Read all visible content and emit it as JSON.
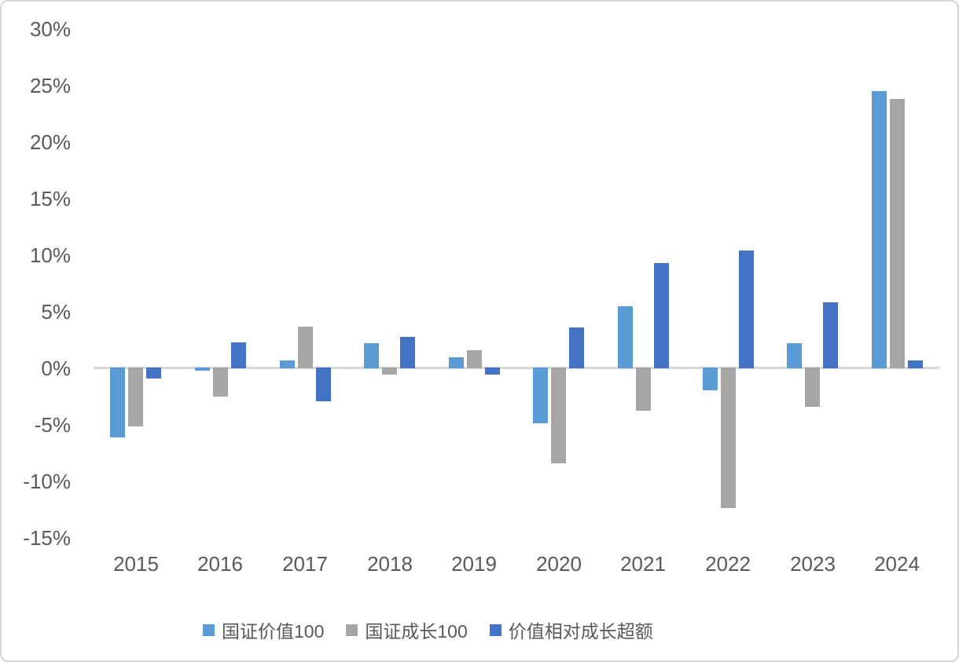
{
  "chart_data": {
    "type": "bar",
    "categories": [
      "2015",
      "2016",
      "2017",
      "2018",
      "2019",
      "2020",
      "2021",
      "2022",
      "2023",
      "2024"
    ],
    "series": [
      {
        "key": "value100",
        "name": "国证价值100",
        "color": "#5B9BD5",
        "values": [
          -6.2,
          -0.3,
          0.7,
          2.2,
          1.0,
          -4.9,
          5.5,
          -2.0,
          2.2,
          24.5
        ]
      },
      {
        "key": "growth100",
        "name": "国证成长100",
        "color": "#A6A6A6",
        "values": [
          -5.2,
          -2.6,
          3.7,
          -0.6,
          1.6,
          -8.5,
          -3.8,
          -12.4,
          -3.5,
          23.8
        ]
      },
      {
        "key": "excess",
        "name": "价值相对成长超额",
        "color": "#4472C4",
        "values": [
          -1.0,
          2.3,
          -3.0,
          2.8,
          -0.6,
          3.6,
          9.3,
          10.4,
          5.8,
          0.7
        ]
      }
    ],
    "y_ticks": [
      30,
      25,
      20,
      15,
      10,
      5,
      0,
      -5,
      -10,
      -15
    ],
    "y_tick_labels": [
      "30%",
      "25%",
      "20%",
      "15%",
      "10%",
      "5%",
      "0%",
      "-5%",
      "-10%",
      "-15%"
    ],
    "ylim": [
      -15,
      30
    ],
    "grid": false,
    "legend_position": "bottom",
    "title": "",
    "xlabel": "",
    "ylabel": "",
    "colors": {
      "axis_line": "#D9D9D9",
      "text": "#595959",
      "background": "#FFFFFF",
      "frame_border": "#D6D6D6"
    }
  }
}
